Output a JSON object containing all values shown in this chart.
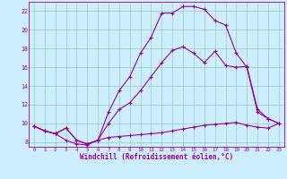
{
  "xlabel": "Windchill (Refroidissement éolien,°C)",
  "bg_color": "#cceeff",
  "line_color": "#990099",
  "grid_color": "#99ccbb",
  "xlim": [
    -0.5,
    23.5
  ],
  "ylim": [
    7.5,
    23.0
  ],
  "xticks": [
    0,
    1,
    2,
    3,
    4,
    5,
    6,
    7,
    8,
    9,
    10,
    11,
    12,
    13,
    14,
    15,
    16,
    17,
    18,
    19,
    20,
    21,
    22,
    23
  ],
  "yticks": [
    8,
    10,
    12,
    14,
    16,
    18,
    20,
    22
  ],
  "line1_x": [
    0,
    1,
    2,
    3,
    4,
    5,
    6,
    7,
    8,
    9,
    10,
    11,
    12,
    13,
    14,
    15,
    16,
    17,
    18,
    19,
    20,
    21,
    22,
    23
  ],
  "line1_y": [
    9.7,
    9.2,
    8.9,
    8.2,
    7.8,
    7.7,
    8.2,
    8.5,
    8.6,
    8.7,
    8.8,
    8.9,
    9.0,
    9.2,
    9.4,
    9.6,
    9.8,
    9.9,
    10.0,
    10.1,
    9.8,
    9.6,
    9.5,
    10.0
  ],
  "line2_x": [
    0,
    1,
    2,
    3,
    4,
    5,
    6,
    7,
    8,
    9,
    10,
    11,
    12,
    13,
    14,
    15,
    16,
    17,
    18,
    19,
    20,
    21,
    22,
    23
  ],
  "line2_y": [
    9.7,
    9.2,
    8.9,
    9.5,
    8.2,
    7.8,
    8.2,
    10.0,
    11.5,
    12.2,
    13.5,
    15.0,
    16.5,
    17.8,
    18.2,
    17.5,
    16.5,
    17.7,
    16.2,
    16.0,
    16.1,
    11.5,
    10.5,
    10.0
  ],
  "line3_x": [
    0,
    1,
    2,
    3,
    4,
    5,
    6,
    7,
    8,
    9,
    10,
    11,
    12,
    13,
    14,
    15,
    16,
    17,
    18,
    19,
    20,
    21,
    22,
    23
  ],
  "line3_y": [
    9.7,
    9.2,
    8.9,
    9.5,
    8.2,
    7.8,
    8.2,
    11.2,
    13.5,
    15.0,
    17.5,
    19.2,
    21.8,
    21.8,
    22.5,
    22.5,
    22.2,
    21.0,
    20.5,
    17.5,
    16.0,
    11.2,
    10.5,
    10.0
  ]
}
